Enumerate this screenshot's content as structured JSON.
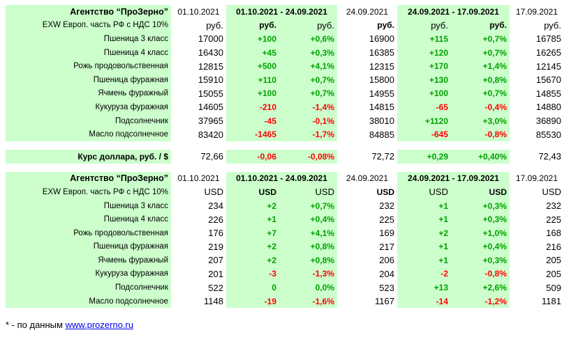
{
  "rub": {
    "header": [
      "Агентство “ПроЗерно”",
      "01.10.2021",
      "01.10.2021 - 24.09.2021",
      "24.09.2021",
      "24.09.2021 - 17.09.2021",
      "17.09.2021"
    ],
    "subheader": [
      "EXW Европ. часть РФ с НДС 10%",
      "руб.",
      "руб.",
      "руб.",
      "руб.",
      "руб.",
      "руб.",
      "руб."
    ],
    "rows": [
      [
        "Пшеница 3 класс",
        "17000",
        "+100",
        "+0,6%",
        "16900",
        "+115",
        "+0,7%",
        "16785"
      ],
      [
        "Пшеница 4 класс",
        "16430",
        "+45",
        "+0,3%",
        "16385",
        "+120",
        "+0,7%",
        "16265"
      ],
      [
        "Рожь продовольственная",
        "12815",
        "+500",
        "+4,1%",
        "12315",
        "+170",
        "+1,4%",
        "12145"
      ],
      [
        "Пшеница фуражная",
        "15910",
        "+110",
        "+0,7%",
        "15800",
        "+130",
        "+0,8%",
        "15670"
      ],
      [
        "Ячмень фуражный",
        "15055",
        "+100",
        "+0,7%",
        "14955",
        "+100",
        "+0,7%",
        "14855"
      ],
      [
        "Кукуруза фуражная",
        "14605",
        "-210",
        "-1,4%",
        "14815",
        "-65",
        "-0,4%",
        "14880"
      ],
      [
        "Подсолнечник",
        "37965",
        "-45",
        "-0,1%",
        "38010",
        "+1120",
        "+3,0%",
        "36890"
      ],
      [
        "Масло подсолнечное",
        "83420",
        "-1465",
        "-1,7%",
        "84885",
        "-645",
        "-0,8%",
        "85530"
      ]
    ]
  },
  "dollar": [
    "Курс доллара, руб. / $",
    "72,66",
    "-0,06",
    "-0,08%",
    "72,72",
    "+0,29",
    "+0,40%",
    "72,43"
  ],
  "usd": {
    "header": [
      "Агентство “ПроЗерно”",
      "01.10.2021",
      "01.10.2021 - 24.09.2021",
      "24.09.2021",
      "24.09.2021 - 17.09.2021",
      "17.09.2021"
    ],
    "subheader": [
      "EXW Европ. часть РФ с НДС 10%",
      "USD",
      "USD",
      "USD",
      "USD",
      "USD",
      "USD",
      "USD"
    ],
    "rows": [
      [
        "Пшеница 3 класс",
        "234",
        "+2",
        "+0,7%",
        "232",
        "+1",
        "+0,3%",
        "232"
      ],
      [
        "Пшеница 4 класс",
        "226",
        "+1",
        "+0,4%",
        "225",
        "+1",
        "+0,3%",
        "225"
      ],
      [
        "Рожь продовольственная",
        "176",
        "+7",
        "+4,1%",
        "169",
        "+2",
        "+1,0%",
        "168"
      ],
      [
        "Пшеница фуражная",
        "219",
        "+2",
        "+0,8%",
        "217",
        "+1",
        "+0,4%",
        "216"
      ],
      [
        "Ячмень фуражный",
        "207",
        "+2",
        "+0,8%",
        "206",
        "+1",
        "+0,3%",
        "205"
      ],
      [
        "Кукуруза фуражная",
        "201",
        "-3",
        "-1,3%",
        "204",
        "-2",
        "-0,8%",
        "205"
      ],
      [
        "Подсолнечник",
        "522",
        "0",
        "0,0%",
        "523",
        "+13",
        "+2,6%",
        "509"
      ],
      [
        "Масло подсолнечное",
        "1148",
        "-19",
        "-1,6%",
        "1167",
        "-14",
        "-1,2%",
        "1181"
      ]
    ]
  },
  "footnote": {
    "prefix": "* - по данным ",
    "link": "www.prozerno.ru"
  },
  "colors": {
    "highlight_bg": "#ccffcc",
    "positive": "#00a000",
    "negative": "#ff0000",
    "link": "#0000ee"
  }
}
